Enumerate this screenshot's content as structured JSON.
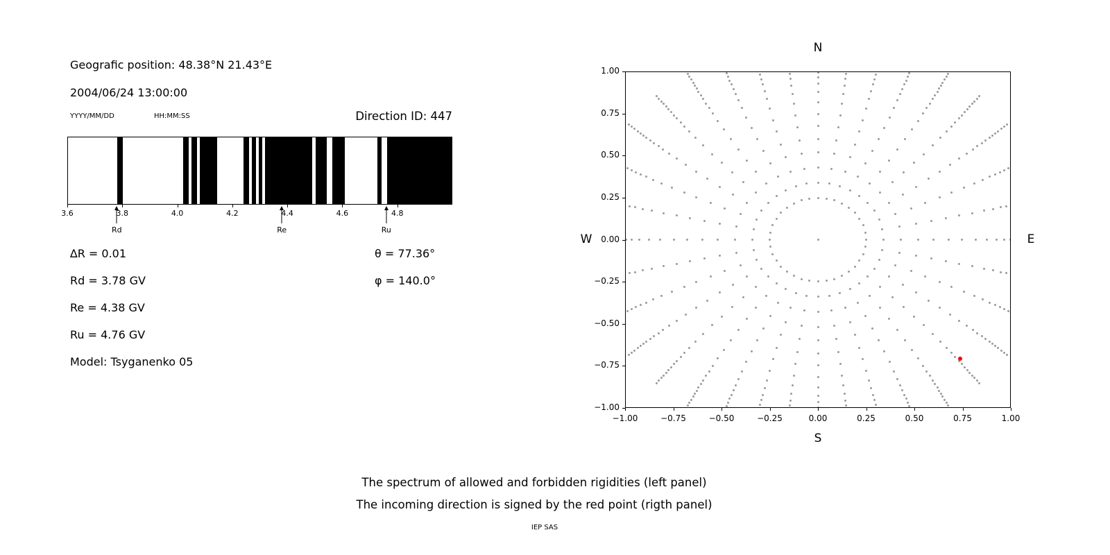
{
  "colors": {
    "background": "#ffffff",
    "text": "#000000",
    "band": "#000000",
    "grid_dot": "#9a9a9a",
    "red_point": "#ff0000"
  },
  "header": {
    "geo_position": "Geografic position: 48.38°N 21.43°E",
    "datetime": "2004/06/24 13:00:00",
    "date_format_label": "YYYY/MM/DD",
    "time_format_label": "HH:MM:SS",
    "direction_id": "Direction ID: 447"
  },
  "left_panel": {
    "params_left": [
      "∆R = 0.01",
      "Rd = 3.78 GV",
      "Re = 4.38 GV",
      "Ru = 4.76 GV",
      "Model: Tsyganenko 05"
    ],
    "params_right": [
      "θ = 77.36°",
      "φ = 140.0°"
    ]
  },
  "right_panel": {
    "north": "N",
    "south": "S",
    "west": "W",
    "east": "E"
  },
  "captions": {
    "line1": "The spectrum of allowed and forbidden rigidities (left panel)",
    "line2": "The incoming direction is signed by the red point (rigth panel)",
    "credit": "IEP SAS"
  },
  "chart_data": [
    {
      "type": "bar",
      "name": "rigidity-spectrum",
      "title": "",
      "xlim": [
        3.6,
        5.0
      ],
      "xtick_values": [
        3.6,
        3.8,
        4.0,
        4.2,
        4.4,
        4.6,
        4.8
      ],
      "xtick_labels": [
        "3.6",
        "3.8",
        "4.0",
        "4.2",
        "4.4",
        "4.6",
        "4.8"
      ],
      "allowed_bands_gv": [
        [
          3.78,
          3.8
        ],
        [
          4.02,
          4.04
        ],
        [
          4.05,
          4.07
        ],
        [
          4.08,
          4.145
        ],
        [
          4.24,
          4.26
        ],
        [
          4.27,
          4.285
        ],
        [
          4.295,
          4.31
        ],
        [
          4.32,
          4.49
        ],
        [
          4.505,
          4.545
        ],
        [
          4.565,
          4.61
        ],
        [
          4.73,
          4.745
        ],
        [
          4.765,
          5.0
        ]
      ],
      "markers": [
        {
          "name": "Rd",
          "value_gv": 3.78
        },
        {
          "name": "Re",
          "value_gv": 4.38
        },
        {
          "name": "Ru",
          "value_gv": 4.76
        }
      ]
    },
    {
      "type": "scatter",
      "name": "incoming-direction-map",
      "xlim": [
        -1,
        1
      ],
      "ylim": [
        -1,
        1
      ],
      "xtick_values": [
        -1,
        -0.75,
        -0.5,
        -0.25,
        0,
        0.25,
        0.5,
        0.75,
        1
      ],
      "xtick_labels": [
        "−1.00",
        "−0.75",
        "−0.50",
        "−0.25",
        "0.00",
        "0.25",
        "0.50",
        "0.75",
        "1.00"
      ],
      "ytick_values": [
        1,
        0.75,
        0.5,
        0.25,
        0,
        -0.25,
        -0.5,
        -0.75,
        -1
      ],
      "ytick_labels": [
        "1.00",
        "0.75",
        "0.50",
        "0.25",
        "0.00",
        "−0.25",
        "−0.50",
        "−0.75",
        "−1.00"
      ],
      "spokes": {
        "count": 36,
        "azimuth_step_deg": 10,
        "radii": [
          0.25,
          0.34,
          0.43,
          0.52,
          0.6,
          0.68,
          0.75,
          0.82,
          0.88,
          0.93,
          0.97,
          1.0,
          1.03,
          1.055,
          1.08,
          1.1,
          1.12,
          1.14,
          1.16,
          1.18,
          1.2
        ],
        "curvature_deg": 6
      },
      "center_dot": {
        "x": 0,
        "y": 0
      },
      "red_point": {
        "x": 0.74,
        "y": -0.71
      }
    }
  ]
}
